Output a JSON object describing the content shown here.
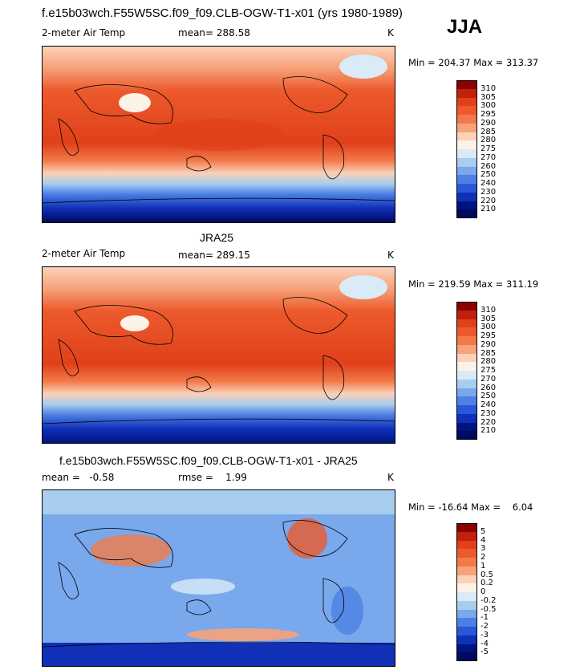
{
  "header": {
    "title": "f.e15b03wch.F55W5SC.f09_f09.CLB-OGW-T1-x01 (yrs 1980-1989)",
    "season": "JJA"
  },
  "panels": [
    {
      "variable": "2-meter Air Temp",
      "stat": "mean= 288.58",
      "units": "K",
      "minmax": "Min = 204.37 Max = 313.37",
      "colorbar": {
        "levels": [
          "310",
          "305",
          "300",
          "295",
          "290",
          "285",
          "280",
          "275",
          "270",
          "260",
          "250",
          "240",
          "230",
          "220",
          "210"
        ],
        "colors": [
          "#8b0000",
          "#c1200a",
          "#e0401a",
          "#ec5a2c",
          "#f27a4a",
          "#f7a27a",
          "#fbd1b8",
          "#fdf2e8",
          "#d9ebf7",
          "#a8cdee",
          "#79a8ec",
          "#4d80e4",
          "#2a56d8",
          "#1030b8",
          "#001480",
          "#000a60"
        ]
      }
    },
    {
      "title": "JRA25",
      "variable": "2-meter Air Temp",
      "stat": "mean= 289.15",
      "units": "K",
      "minmax": "Min = 219.59 Max = 311.19",
      "colorbar": {
        "levels": [
          "310",
          "305",
          "300",
          "295",
          "290",
          "285",
          "280",
          "275",
          "270",
          "260",
          "250",
          "240",
          "230",
          "220",
          "210"
        ],
        "colors": [
          "#8b0000",
          "#c1200a",
          "#e0401a",
          "#ec5a2c",
          "#f27a4a",
          "#f7a27a",
          "#fbd1b8",
          "#fdf2e8",
          "#d9ebf7",
          "#a8cdee",
          "#79a8ec",
          "#4d80e4",
          "#2a56d8",
          "#1030b8",
          "#001480",
          "#000a60"
        ]
      }
    },
    {
      "title": "f.e15b03wch.F55W5SC.f09_f09.CLB-OGW-T1-x01 - JRA25",
      "stat_left": "mean =   -0.58",
      "stat_mid": "rmse =    1.99",
      "units": "K",
      "minmax": "Min = -16.64 Max =    6.04",
      "colorbar": {
        "levels": [
          "5",
          "4",
          "3",
          "2",
          "1",
          "0.5",
          "0.2",
          "0",
          "-0.2",
          "-0.5",
          "-1",
          "-2",
          "-3",
          "-4",
          "-5"
        ],
        "colors": [
          "#8b0000",
          "#c1200a",
          "#e0401a",
          "#ec5a2c",
          "#f27a4a",
          "#f7a27a",
          "#fbd1b8",
          "#fdf2e8",
          "#d9ebf7",
          "#a8cdee",
          "#79a8ec",
          "#4d80e4",
          "#2a56d8",
          "#1030b8",
          "#001480",
          "#000a60"
        ]
      }
    }
  ]
}
